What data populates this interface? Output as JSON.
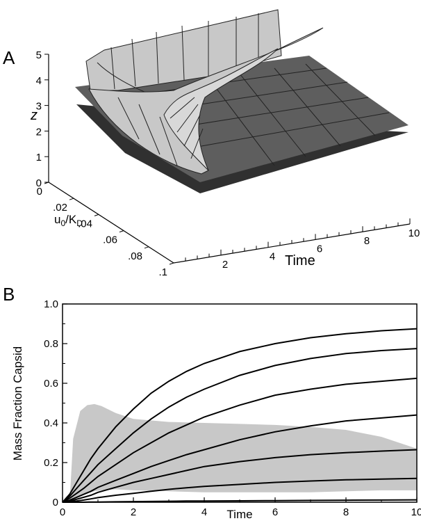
{
  "panels": {
    "A": {
      "letter": "A"
    },
    "B": {
      "letter": "B"
    }
  },
  "chart_data": [
    {
      "panel": "A",
      "type": "surface3d",
      "axes": {
        "z": {
          "label": "z",
          "ticks": [
            "0",
            "1",
            "2",
            "3",
            "4",
            "5"
          ],
          "range": [
            0,
            5
          ]
        },
        "u": {
          "label_main": "u",
          "label_sub1": "0",
          "label_mid": "/K",
          "label_sub2": "D",
          "ticks": [
            "0",
            ".02",
            ".04",
            ".06",
            ".08",
            ".1"
          ],
          "range": [
            0,
            0.1
          ]
        },
        "time": {
          "label": "Time",
          "ticks": [
            "2",
            "4",
            "6",
            "8",
            "10"
          ],
          "range": [
            0,
            10
          ]
        }
      },
      "colors": {
        "dark_plane": "#303030",
        "mid_plane": "#5a5a5a",
        "light_surface": "#c8c8c8"
      }
    },
    {
      "panel": "B",
      "type": "line",
      "xlabel": "Time",
      "ylabel": "Mass Fraction Capsid",
      "xlim": [
        0,
        10
      ],
      "ylim": [
        0,
        1.0
      ],
      "xticks": [
        "0",
        "2",
        "4",
        "6",
        "8",
        "10"
      ],
      "yticks": [
        "0",
        "0.2",
        "0.4",
        "0.6",
        "0.8",
        "1.0"
      ],
      "x": [
        0,
        0.2,
        0.4,
        0.6,
        0.8,
        1,
        1.5,
        2,
        2.5,
        3,
        3.5,
        4,
        5,
        6,
        7,
        8,
        9,
        10
      ],
      "series": [
        {
          "values": [
            0,
            0.04,
            0.1,
            0.16,
            0.22,
            0.27,
            0.38,
            0.47,
            0.55,
            0.61,
            0.66,
            0.7,
            0.76,
            0.8,
            0.83,
            0.85,
            0.865,
            0.875
          ]
        },
        {
          "values": [
            0,
            0.03,
            0.07,
            0.11,
            0.15,
            0.19,
            0.27,
            0.35,
            0.42,
            0.48,
            0.53,
            0.57,
            0.64,
            0.69,
            0.725,
            0.75,
            0.765,
            0.775
          ]
        },
        {
          "values": [
            0,
            0.02,
            0.045,
            0.07,
            0.1,
            0.13,
            0.19,
            0.25,
            0.3,
            0.35,
            0.39,
            0.43,
            0.49,
            0.54,
            0.57,
            0.595,
            0.61,
            0.625
          ]
        },
        {
          "values": [
            0,
            0.01,
            0.025,
            0.04,
            0.055,
            0.075,
            0.11,
            0.145,
            0.18,
            0.21,
            0.24,
            0.265,
            0.315,
            0.355,
            0.385,
            0.41,
            0.425,
            0.44
          ]
        },
        {
          "values": [
            0,
            0.005,
            0.015,
            0.025,
            0.035,
            0.05,
            0.075,
            0.1,
            0.12,
            0.14,
            0.16,
            0.18,
            0.205,
            0.225,
            0.24,
            0.25,
            0.258,
            0.265
          ]
        },
        {
          "values": [
            0,
            0.002,
            0.006,
            0.011,
            0.017,
            0.023,
            0.035,
            0.045,
            0.055,
            0.065,
            0.073,
            0.08,
            0.09,
            0.1,
            0.107,
            0.113,
            0.117,
            0.12
          ]
        },
        {
          "values": [
            0,
            0,
            0,
            0,
            0.001,
            0.001,
            0.002,
            0.003,
            0.004,
            0.005,
            0.006,
            0.006,
            0.007,
            0.008,
            0.009,
            0.01,
            0.011,
            0.012
          ]
        }
      ],
      "band": {
        "color": "#c8c8c8",
        "x": [
          0.2,
          0.3,
          0.5,
          0.7,
          0.9,
          1.1,
          1.5,
          2,
          3,
          4,
          5,
          6,
          7,
          8,
          9,
          9.5,
          10
        ],
        "upper": [
          0.0,
          0.32,
          0.46,
          0.49,
          0.495,
          0.485,
          0.45,
          0.42,
          0.405,
          0.4,
          0.395,
          0.39,
          0.38,
          0.365,
          0.33,
          0.3,
          0.27
        ],
        "lower": [
          0.0,
          0.01,
          0.03,
          0.045,
          0.055,
          0.06,
          0.065,
          0.06,
          0.055,
          0.05,
          0.05,
          0.05,
          0.05,
          0.055,
          0.06,
          0.06,
          0.06
        ]
      }
    }
  ]
}
